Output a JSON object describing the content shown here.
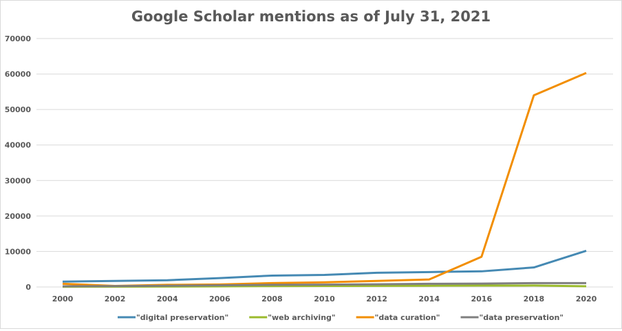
{
  "chart_data": {
    "type": "line",
    "title": "Google Scholar mentions as of July 31, 2021",
    "xlabel": "",
    "ylabel": "",
    "x": [
      "2000",
      "2002",
      "2004",
      "2006",
      "2008",
      "2010",
      "2012",
      "2014",
      "2016",
      "2018",
      "2020"
    ],
    "ylim": [
      0,
      70000
    ],
    "yticks": [
      "0",
      "10000",
      "20000",
      "30000",
      "40000",
      "50000",
      "60000",
      "70000"
    ],
    "grid": true,
    "legend": "bottom",
    "series": [
      {
        "name": "\"digital preservation\"",
        "color": "#4589b3",
        "values": [
          1500,
          1700,
          1900,
          2500,
          3200,
          3400,
          4000,
          4200,
          4400,
          5500,
          10200
        ]
      },
      {
        "name": "\"web archiving\"",
        "color": "#9bbb2c",
        "values": [
          50,
          80,
          120,
          180,
          250,
          280,
          320,
          350,
          380,
          400,
          200
        ]
      },
      {
        "name": "\"data curation\"",
        "color": "#f28e00",
        "values": [
          900,
          300,
          600,
          700,
          1100,
          1300,
          1700,
          2100,
          8500,
          54000,
          60300
        ]
      },
      {
        "name": "\"data preservation\"",
        "color": "#7f7f7f",
        "values": [
          200,
          250,
          350,
          450,
          600,
          650,
          750,
          900,
          950,
          1100,
          1100
        ]
      }
    ]
  }
}
